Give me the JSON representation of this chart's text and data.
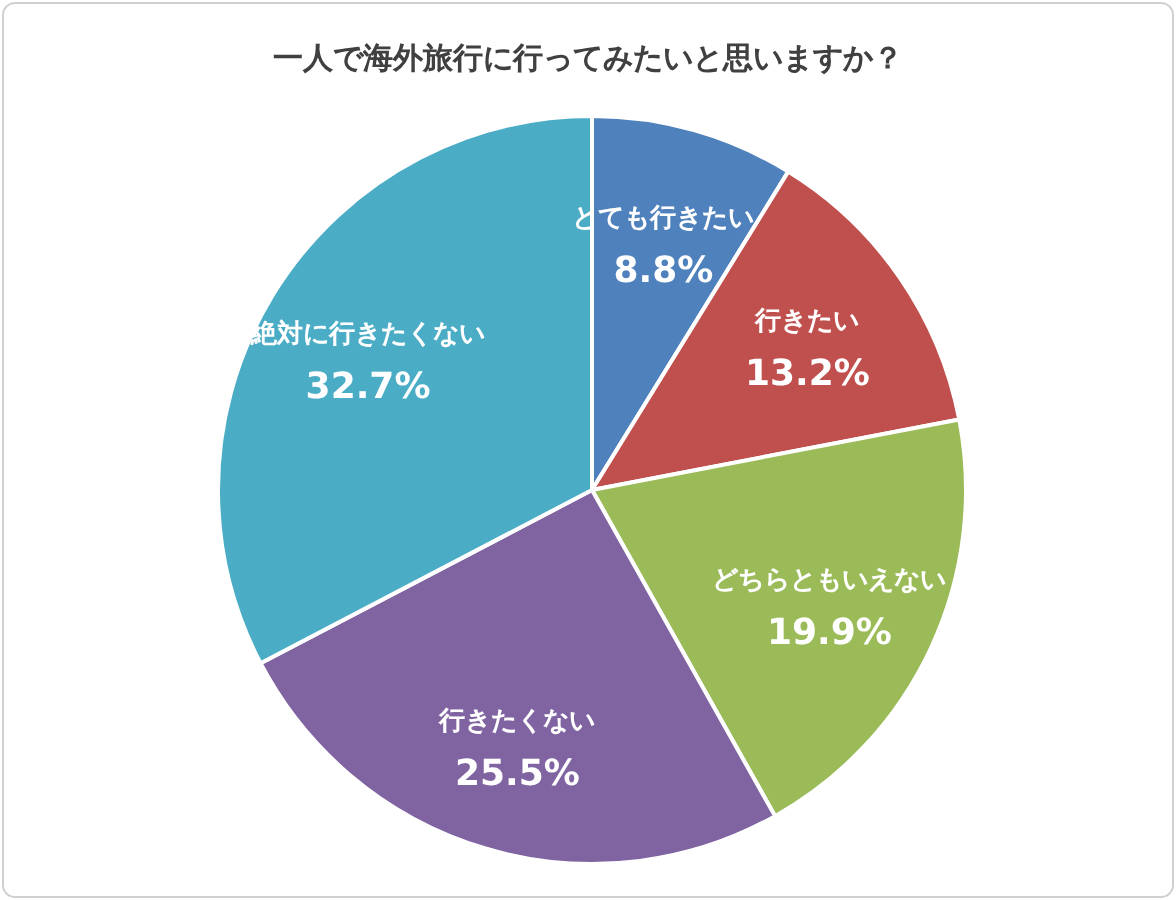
{
  "chart_data": {
    "type": "pie",
    "title": "一人で海外旅行に行ってみたいと思いますか？",
    "categories": [
      "とても行きたい",
      "行きたい",
      "どちらともいえない",
      "行きたくない",
      "絶対に行きたくない"
    ],
    "values": [
      8.8,
      13.2,
      19.9,
      25.5,
      32.7
    ],
    "value_labels": [
      "8.8%",
      "13.2%",
      "19.9%",
      "25.5%",
      "32.7%"
    ],
    "colors": [
      "#4f81bd",
      "#c0504d",
      "#9bbb59",
      "#8064a2",
      "#4bacc6"
    ],
    "legend": false
  }
}
